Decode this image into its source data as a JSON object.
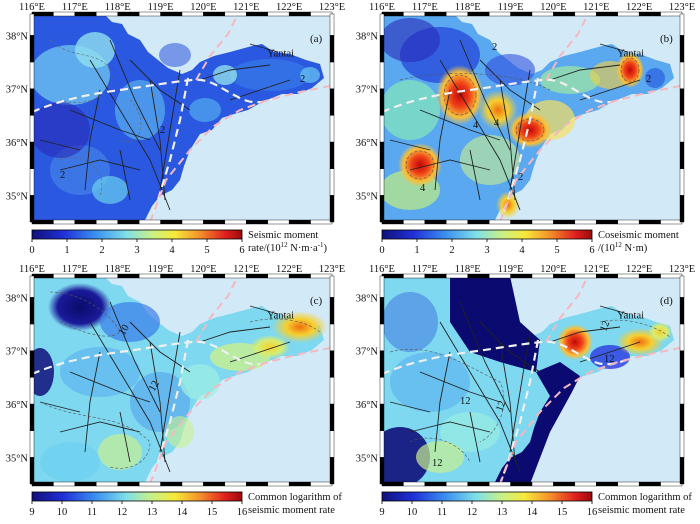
{
  "lon_ticks": [
    "116°E",
    "117°E",
    "118°E",
    "119°E",
    "120°E",
    "121°E",
    "122°E",
    "123°E"
  ],
  "lat_ticks": [
    "38°N",
    "37°N",
    "36°N",
    "35°N"
  ],
  "city": "Yantai",
  "panels": [
    {
      "label": "(a)",
      "cb_ticks": [
        "0",
        "1",
        "2",
        "3",
        "4",
        "5",
        "6"
      ],
      "cb_range": [
        0,
        6
      ],
      "cb_line1": "Seismic moment",
      "cb_line2_pre": "rate/(10",
      "cb_line2_sup": "12",
      "cb_line2_post": " N·m·a",
      "cb_line2_sup2": "-1",
      "cb_line2_end": ")",
      "contours": [
        "2",
        "2",
        "2"
      ]
    },
    {
      "label": "(b)",
      "cb_ticks": [
        "0",
        "1",
        "2",
        "3",
        "4",
        "5",
        "6"
      ],
      "cb_range": [
        0,
        6
      ],
      "cb_line1": "Coseismic moment",
      "cb_line2_pre": "/(10",
      "cb_line2_sup": "12",
      "cb_line2_post": " N·m)",
      "cb_line2_sup2": "",
      "cb_line2_end": "",
      "contours": [
        "2",
        "4",
        "4",
        "4",
        "2",
        "2"
      ]
    },
    {
      "label": "(c)",
      "cb_ticks": [
        "9",
        "10",
        "11",
        "12",
        "13",
        "14",
        "15",
        "16"
      ],
      "cb_range": [
        9,
        16
      ],
      "cb_line1": "Common logarithm of",
      "cb_line2_pre": "seismic moment rate",
      "cb_line2_sup": "",
      "cb_line2_post": "",
      "cb_line2_sup2": "",
      "cb_line2_end": "",
      "contours": [
        "10",
        "12"
      ]
    },
    {
      "label": "(d)",
      "cb_ticks": [
        "9",
        "10",
        "11",
        "12",
        "13",
        "14",
        "15",
        "16"
      ],
      "cb_range": [
        9,
        16
      ],
      "cb_line1": "Common logarithm of",
      "cb_line2_pre": "seismic moment rate",
      "cb_line2_sup": "",
      "cb_line2_post": "",
      "cb_line2_sup2": "",
      "cb_line2_end": "",
      "contours": [
        "12",
        "12",
        "12",
        "12",
        "12"
      ]
    }
  ]
}
